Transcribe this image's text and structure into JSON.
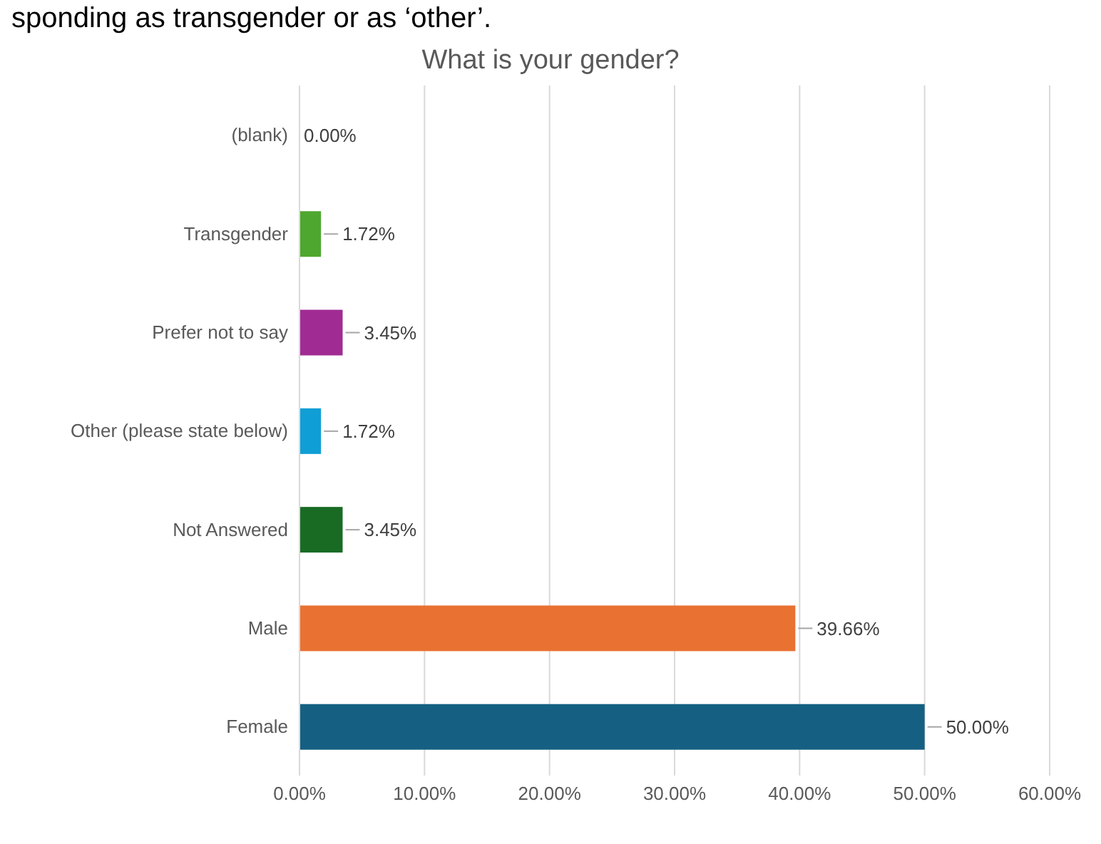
{
  "chart_data": {
    "type": "bar",
    "orientation": "horizontal",
    "title": "What is your gender?",
    "annotations": [
      "sponding as transgender or as ‘other’."
    ],
    "categories": [
      "(blank)",
      "Transgender",
      "Prefer not to say",
      "Other (please state below)",
      "Not Answered",
      "Male",
      "Female"
    ],
    "values": [
      0,
      1.72,
      3.45,
      1.72,
      3.45,
      39.66,
      50
    ],
    "colors": [
      "#808080",
      "#4ea72e",
      "#a02b93",
      "#0f9ed5",
      "#196b24",
      "#e97132",
      "#156082"
    ],
    "value_labels": [
      "0.00%",
      "1.72%",
      "3.45%",
      "1.72%",
      "3.45%",
      "39.66%",
      "50.00%"
    ],
    "xlim": [
      0,
      60
    ],
    "xticks": [
      {
        "value": 0,
        "label": "0.00%"
      },
      {
        "value": 10,
        "label": "10.00%"
      },
      {
        "value": 20,
        "label": "20.00%"
      },
      {
        "value": 30,
        "label": "30.00%"
      },
      {
        "value": 40,
        "label": "40.00%"
      },
      {
        "value": 50,
        "label": "50.00%"
      },
      {
        "value": 60,
        "label": "60.00%"
      }
    ],
    "grid": "x"
  }
}
